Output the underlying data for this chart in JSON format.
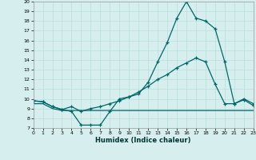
{
  "xlabel": "Humidex (Indice chaleur)",
  "bg_color": "#d6efee",
  "line_color": "#006666",
  "grid_color": "#b8dedd",
  "xlim": [
    0,
    23
  ],
  "ylim": [
    7,
    20
  ],
  "x_ticks": [
    0,
    1,
    2,
    3,
    4,
    5,
    6,
    7,
    8,
    9,
    10,
    11,
    12,
    13,
    14,
    15,
    16,
    17,
    18,
    19,
    20,
    21,
    22,
    23
  ],
  "y_ticks": [
    7,
    8,
    9,
    10,
    11,
    12,
    13,
    14,
    15,
    16,
    17,
    18,
    19,
    20
  ],
  "line1_x": [
    0,
    1,
    2,
    3,
    4,
    5,
    6,
    7,
    8,
    9,
    10,
    11,
    12,
    13,
    14,
    15,
    16,
    17,
    18,
    19,
    20,
    21,
    22,
    23
  ],
  "line1_y": [
    9.8,
    9.7,
    9.2,
    8.9,
    8.7,
    7.3,
    7.3,
    7.3,
    8.7,
    10.0,
    10.2,
    10.5,
    11.7,
    13.8,
    15.8,
    18.3,
    20.0,
    18.3,
    18.0,
    17.2,
    13.8,
    9.5,
    9.9,
    9.3
  ],
  "line2_x": [
    0,
    1,
    2,
    3,
    4,
    5,
    6,
    7,
    8,
    9,
    10,
    11,
    12,
    13,
    14,
    15,
    16,
    17,
    18,
    19,
    20,
    21,
    22,
    23
  ],
  "line2_y": [
    9.8,
    9.7,
    9.2,
    8.9,
    9.2,
    8.7,
    9.0,
    9.2,
    9.5,
    9.8,
    10.2,
    10.7,
    11.3,
    12.0,
    12.5,
    13.2,
    13.7,
    14.2,
    13.8,
    11.5,
    9.5,
    9.5,
    10.0,
    9.5
  ],
  "line3_x": [
    0,
    1,
    2,
    3,
    4,
    5,
    6,
    7,
    8,
    9,
    10,
    11,
    12,
    13,
    14,
    15,
    16,
    17,
    18,
    19,
    20,
    21,
    22,
    23
  ],
  "line3_y": [
    9.5,
    9.5,
    9.0,
    8.8,
    8.8,
    8.8,
    8.8,
    8.8,
    8.8,
    8.8,
    8.8,
    8.8,
    8.8,
    8.8,
    8.8,
    8.8,
    8.8,
    8.8,
    8.8,
    8.8,
    8.8,
    8.8,
    8.8,
    8.8
  ]
}
